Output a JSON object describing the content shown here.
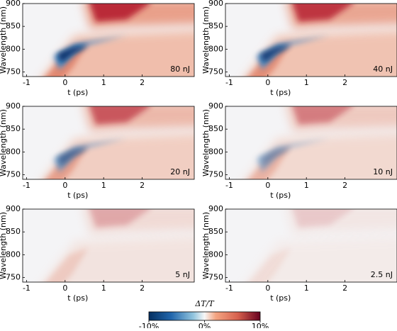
{
  "chart_data": [
    {
      "type": "heatmap",
      "annotation": "80 nJ",
      "xlabel": "t (ps)",
      "ylabel": "Wavelength (nm)",
      "xlim": [
        -1.1,
        3.35
      ],
      "ylim": [
        740,
        900
      ],
      "xticks": [
        -1,
        0,
        1,
        2
      ],
      "yticks": [
        750,
        800,
        850,
        900
      ]
    },
    {
      "type": "heatmap",
      "annotation": "40 nJ",
      "xlabel": "t (ps)",
      "ylabel": "Wavelength (nm)",
      "xlim": [
        -1.1,
        3.35
      ],
      "ylim": [
        740,
        900
      ],
      "xticks": [
        -1,
        0,
        1,
        2
      ],
      "yticks": [
        750,
        800,
        850,
        900
      ]
    },
    {
      "type": "heatmap",
      "annotation": "20 nJ",
      "xlabel": "t (ps)",
      "ylabel": "Wavelength (nm)",
      "xlim": [
        -1.1,
        3.35
      ],
      "ylim": [
        740,
        900
      ],
      "xticks": [
        -1,
        0,
        1,
        2
      ],
      "yticks": [
        750,
        800,
        850,
        900
      ]
    },
    {
      "type": "heatmap",
      "annotation": "10 nJ",
      "xlabel": "t (ps)",
      "ylabel": "Wavelength (nm)",
      "xlim": [
        -1.1,
        3.35
      ],
      "ylim": [
        740,
        900
      ],
      "xticks": [
        -1,
        0,
        1,
        2
      ],
      "yticks": [
        750,
        800,
        850,
        900
      ]
    },
    {
      "type": "heatmap",
      "annotation": "5 nJ",
      "xlabel": "t (ps)",
      "ylabel": "Wavelength (nm)",
      "xlim": [
        -1.1,
        3.35
      ],
      "ylim": [
        740,
        900
      ],
      "xticks": [
        -1,
        0,
        1,
        2
      ],
      "yticks": [
        750,
        800,
        850,
        900
      ]
    },
    {
      "type": "heatmap",
      "annotation": "2.5 nJ",
      "xlabel": "t (ps)",
      "ylabel": "Wavelength (nm)",
      "xlim": [
        -1.1,
        3.35
      ],
      "ylim": [
        740,
        900
      ],
      "xticks": [
        -1,
        0,
        1,
        2
      ],
      "yticks": [
        750,
        800,
        850,
        900
      ]
    },
    {
      "type": "colorbar",
      "title": "ΔT/T",
      "xlim": [
        -10,
        10
      ],
      "xticks": [
        {
          "value": -10,
          "label": "-10%"
        },
        {
          "value": 0,
          "label": "0%"
        },
        {
          "value": 10,
          "label": "10%"
        }
      ]
    }
  ]
}
